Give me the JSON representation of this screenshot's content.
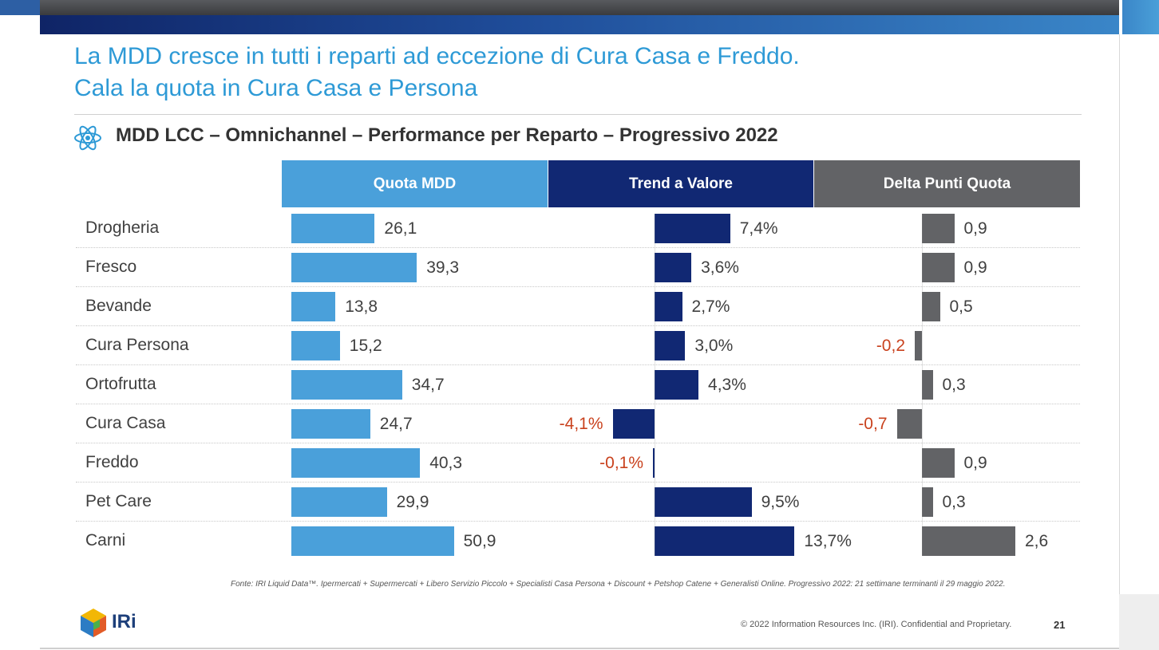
{
  "header": {
    "title_line1": "La MDD cresce in tutti i reparti ad eccezione di Cura Casa e Freddo.",
    "title_line2": "Cala la quota in Cura Casa e Persona",
    "subtitle": "MDD LCC – Omnichannel – Performance per Reparto – Progressivo 2022"
  },
  "colors": {
    "quota": "#4aa0da",
    "trend": "#112873",
    "delta": "#626366",
    "negative_text": "#c9421e",
    "title": "#2e9ad6"
  },
  "chart_data": {
    "type": "bar",
    "title": "MDD LCC – Omnichannel – Performance per Reparto – Progressivo 2022",
    "categories": [
      "Drogheria",
      "Fresco",
      "Bevande",
      "Cura Persona",
      "Ortofrutta",
      "Cura Casa",
      "Freddo",
      "Pet Care",
      "Carni"
    ],
    "series": [
      {
        "key": "quota",
        "name": "Quota MDD",
        "values": [
          26.1,
          39.3,
          13.8,
          15.2,
          34.7,
          24.7,
          40.3,
          29.9,
          50.9
        ],
        "labels": [
          "26,1",
          "39,3",
          "13,8",
          "15,2",
          "34,7",
          "24,7",
          "40,3",
          "29,9",
          "50,9"
        ]
      },
      {
        "key": "trend",
        "name": "Trend a Valore",
        "values": [
          7.4,
          3.6,
          2.7,
          3.0,
          4.3,
          -4.1,
          -0.1,
          9.5,
          13.7
        ],
        "labels": [
          "7,4%",
          "3,6%",
          "2,7%",
          "3,0%",
          "4,3%",
          "-4,1%",
          "-0,1%",
          "9,5%",
          "13,7%"
        ]
      },
      {
        "key": "delta",
        "name": "Delta Punti Quota",
        "values": [
          0.9,
          0.9,
          0.5,
          -0.2,
          0.3,
          -0.7,
          0.9,
          0.3,
          2.6
        ],
        "labels": [
          "0,9",
          "0,9",
          "0,5",
          "-0,2",
          "0,3",
          "-0,7",
          "0,9",
          "0,3",
          "2,6"
        ]
      }
    ]
  },
  "footer": {
    "source": "Fonte: IRI Liquid Data™. Ipermercati + Supermercati + Libero Servizio Piccolo + Specialisti Casa Persona + Discount + Petshop Catene + Generalisti Online. Progressivo 2022: 21 settimane terminanti il 29 maggio 2022.",
    "copyright": "© 2022 Information Resources Inc. (IRI). Confidential and Proprietary.",
    "page_number": "21",
    "logo_text": "IRi"
  }
}
